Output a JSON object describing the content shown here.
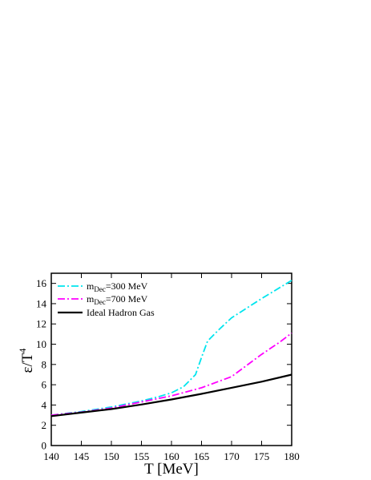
{
  "chart_data": {
    "type": "line",
    "xlabel": "T [MeV]",
    "ylabel_main": "ε/T",
    "ylabel_sup": "4",
    "xlim": [
      140,
      180
    ],
    "ylim": [
      0,
      17
    ],
    "xticks": [
      140,
      145,
      150,
      155,
      160,
      165,
      170,
      175,
      180
    ],
    "yticks": [
      0,
      2,
      4,
      6,
      8,
      10,
      12,
      14,
      16
    ],
    "grid": false,
    "legend_position": "top-left",
    "series": [
      {
        "name_main": "m",
        "name_sub": "Dec",
        "name_rest": "=300 MeV",
        "color": "#00e5ee",
        "dash": "9,3,2,3",
        "x": [
          140,
          145,
          150,
          155,
          158,
          160,
          162,
          164,
          165,
          166,
          168,
          170,
          175,
          180
        ],
        "y": [
          3.0,
          3.35,
          3.8,
          4.4,
          4.85,
          5.2,
          5.8,
          7.0,
          8.7,
          10.3,
          11.5,
          12.6,
          14.5,
          16.3
        ]
      },
      {
        "name_main": "m",
        "name_sub": "Dec",
        "name_rest": "=700 MeV",
        "color": "#ff00ff",
        "dash": "9,3,2,3",
        "x": [
          140,
          145,
          150,
          155,
          160,
          165,
          170,
          175,
          178,
          180
        ],
        "y": [
          3.0,
          3.3,
          3.7,
          4.3,
          4.9,
          5.7,
          6.8,
          9.0,
          10.2,
          11.1
        ]
      },
      {
        "name_main": "Ideal Hadron Gas",
        "name_sub": "",
        "name_rest": "",
        "color": "#000000",
        "dash": "",
        "x": [
          140,
          145,
          150,
          155,
          160,
          165,
          170,
          175,
          180
        ],
        "y": [
          2.9,
          3.25,
          3.6,
          4.05,
          4.55,
          5.1,
          5.7,
          6.3,
          7.0
        ]
      }
    ]
  }
}
